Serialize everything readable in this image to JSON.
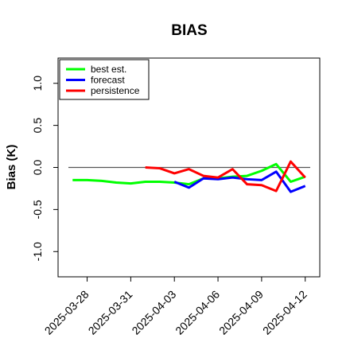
{
  "chart_data": {
    "type": "line",
    "title": "BIAS",
    "ylabel": "Bias (K)",
    "xlabel": "",
    "ylim": [
      -1.3,
      1.3
    ],
    "yticks": [
      1.0,
      0.5,
      0.0,
      -0.5,
      -1.0
    ],
    "ytick_labels": [
      "1.0",
      "0.5",
      "0.0",
      "-0.5",
      "-1.0"
    ],
    "xlim": [
      "2025-03-26",
      "2025-04-13"
    ],
    "xticks": [
      {
        "date": "2025-03-28",
        "label": "2025-03-28",
        "color": "#000000"
      },
      {
        "date": "2025-03-31",
        "label": "2025-03-31",
        "color": "#000000"
      },
      {
        "date": "2025-04-03",
        "label": "2025-04-03",
        "color": "#228B22"
      },
      {
        "date": "2025-04-06",
        "label": "2025-04-06",
        "color": "#000000"
      },
      {
        "date": "2025-04-09",
        "label": "2025-04-09",
        "color": "#000000"
      },
      {
        "date": "2025-04-12",
        "label": "2025-04-12",
        "color": "#000000"
      }
    ],
    "reference_line": 0.0,
    "grid": false,
    "legend_position": "top-left",
    "series": [
      {
        "name": "best est.",
        "color": "#00ff00",
        "points": [
          {
            "x": "2025-03-27",
            "y": -0.15
          },
          {
            "x": "2025-03-28",
            "y": -0.15
          },
          {
            "x": "2025-03-29",
            "y": -0.16
          },
          {
            "x": "2025-03-30",
            "y": -0.18
          },
          {
            "x": "2025-03-31",
            "y": -0.19
          },
          {
            "x": "2025-04-01",
            "y": -0.17
          },
          {
            "x": "2025-04-02",
            "y": -0.17
          },
          {
            "x": "2025-04-03",
            "y": -0.18
          },
          {
            "x": "2025-04-04",
            "y": -0.2
          },
          {
            "x": "2025-04-05",
            "y": -0.13
          },
          {
            "x": "2025-04-06",
            "y": -0.13
          },
          {
            "x": "2025-04-07",
            "y": -0.11
          },
          {
            "x": "2025-04-08",
            "y": -0.1
          },
          {
            "x": "2025-04-09",
            "y": -0.04
          },
          {
            "x": "2025-04-10",
            "y": 0.04
          },
          {
            "x": "2025-04-11",
            "y": -0.17
          },
          {
            "x": "2025-04-12",
            "y": -0.11
          }
        ]
      },
      {
        "name": "forecast",
        "color": "#0000ff",
        "points": [
          {
            "x": "2025-04-03",
            "y": -0.17
          },
          {
            "x": "2025-04-04",
            "y": -0.24
          },
          {
            "x": "2025-04-05",
            "y": -0.13
          },
          {
            "x": "2025-04-06",
            "y": -0.14
          },
          {
            "x": "2025-04-07",
            "y": -0.12
          },
          {
            "x": "2025-04-08",
            "y": -0.14
          },
          {
            "x": "2025-04-09",
            "y": -0.15
          },
          {
            "x": "2025-04-10",
            "y": -0.05
          },
          {
            "x": "2025-04-11",
            "y": -0.29
          },
          {
            "x": "2025-04-12",
            "y": -0.22
          }
        ]
      },
      {
        "name": "persistence",
        "color": "#ff0000",
        "points": [
          {
            "x": "2025-04-01",
            "y": 0.0
          },
          {
            "x": "2025-04-02",
            "y": -0.01
          },
          {
            "x": "2025-04-03",
            "y": -0.07
          },
          {
            "x": "2025-04-04",
            "y": -0.02
          },
          {
            "x": "2025-04-05",
            "y": -0.1
          },
          {
            "x": "2025-04-06",
            "y": -0.12
          },
          {
            "x": "2025-04-07",
            "y": -0.02
          },
          {
            "x": "2025-04-08",
            "y": -0.2
          },
          {
            "x": "2025-04-09",
            "y": -0.21
          },
          {
            "x": "2025-04-10",
            "y": -0.28
          },
          {
            "x": "2025-04-11",
            "y": 0.07
          },
          {
            "x": "2025-04-12",
            "y": -0.12
          }
        ]
      }
    ]
  }
}
